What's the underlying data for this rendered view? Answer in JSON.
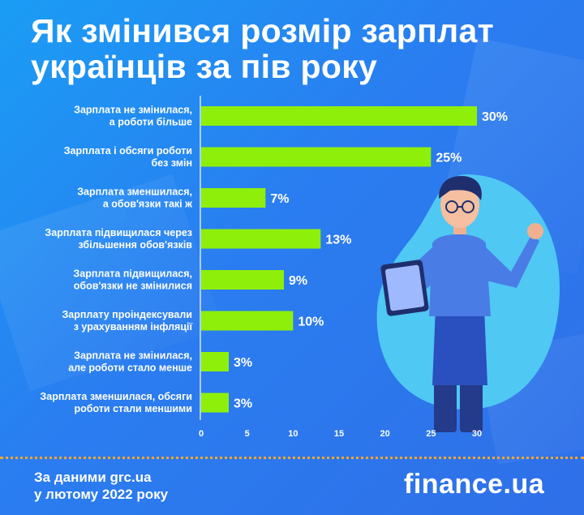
{
  "title_line1": "Як змінився розмір зарплат",
  "title_line2": "українців за пів року",
  "source_line1": "За даними grc.ua",
  "source_line2": "у лютому 2022 року",
  "brand": "finance.ua",
  "colors": {
    "bar": "#8ef00a",
    "background": "#2a7df0",
    "accent_line": "#f4a52d",
    "blob": "#4fc8f3"
  },
  "chart_data": {
    "type": "bar",
    "orientation": "horizontal",
    "title": "Як змінився розмір зарплат українців за пів року",
    "categories": [
      [
        "Зарплата не змінилася,",
        "а роботи більше"
      ],
      [
        "Зарплата і обсяги роботи",
        "без змін"
      ],
      [
        "Зарплата зменшилася,",
        "а обов'язки такі ж"
      ],
      [
        "Зарплата підвищилася через",
        "збільшення обов'язків"
      ],
      [
        "Зарплата підвищилася,",
        "обов'язки не змінилися"
      ],
      [
        "Зарплату проіндексували",
        "з урахуванням інфляції"
      ],
      [
        "Зарплата не змінилася,",
        "але роботи стало менше"
      ],
      [
        "Зарплата зменшилася, обсяги",
        "роботи стали меншими"
      ]
    ],
    "values": [
      30,
      25,
      7,
      13,
      9,
      10,
      3,
      3
    ],
    "value_labels": [
      "30%",
      "25%",
      "7%",
      "13%",
      "9%",
      "10%",
      "3%",
      "3%"
    ],
    "xlim": [
      0,
      30
    ],
    "xticks": [
      "0",
      "5",
      "10",
      "15",
      "20",
      "25",
      "30"
    ],
    "grid": false,
    "legend": "none"
  }
}
